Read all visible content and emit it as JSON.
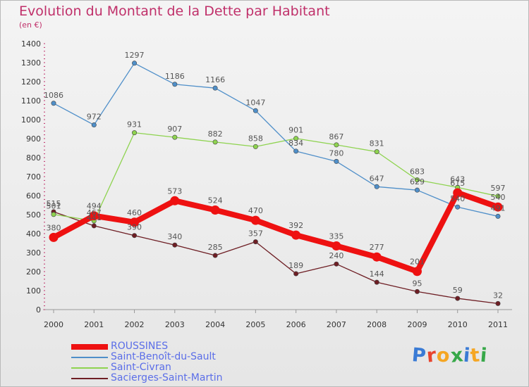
{
  "title": "Evolution du Montant de la Dette par Habitant",
  "subtitle": "(en €)",
  "logo_text": "Proxiti",
  "logo_colors": [
    "#3a7bd5",
    "#e8442e",
    "#f5a623",
    "#37a849",
    "#3a7bd5",
    "#f5a623",
    "#37a849"
  ],
  "chart_data": {
    "type": "line",
    "title": "Evolution du Montant de la Dette par Habitant",
    "subtitle": "(en €)",
    "x": [
      "2000",
      "2001",
      "2002",
      "2003",
      "2004",
      "2005",
      "2006",
      "2007",
      "2008",
      "2009",
      "2010",
      "2011"
    ],
    "ylim": [
      0,
      1400
    ],
    "yticks": [
      0,
      100,
      200,
      300,
      400,
      500,
      600,
      700,
      800,
      900,
      1000,
      1100,
      1200,
      1300,
      1400
    ],
    "grid": false,
    "legend_position": "bottom-left",
    "series": [
      {
        "name": "ROUSSINES",
        "color": "#ee1111",
        "values": [
          380,
          494,
          460,
          573,
          524,
          470,
          392,
          335,
          277,
          201,
          615,
          540
        ]
      },
      {
        "name": "Saint-Benoît-du-Sault",
        "color": "#4f8fc9",
        "values": [
          1086,
          972,
          1297,
          1186,
          1166,
          1047,
          834,
          780,
          647,
          629,
          540,
          491
        ]
      },
      {
        "name": "Saint-Civran",
        "color": "#8ed34f",
        "values": [
          501,
          467,
          931,
          907,
          882,
          858,
          901,
          867,
          831,
          683,
          643,
          597
        ]
      },
      {
        "name": "Sacierges-Saint-Martin",
        "color": "#6e1e24",
        "values": [
          515,
          441,
          390,
          340,
          285,
          357,
          189,
          240,
          144,
          95,
          59,
          32
        ]
      }
    ]
  }
}
